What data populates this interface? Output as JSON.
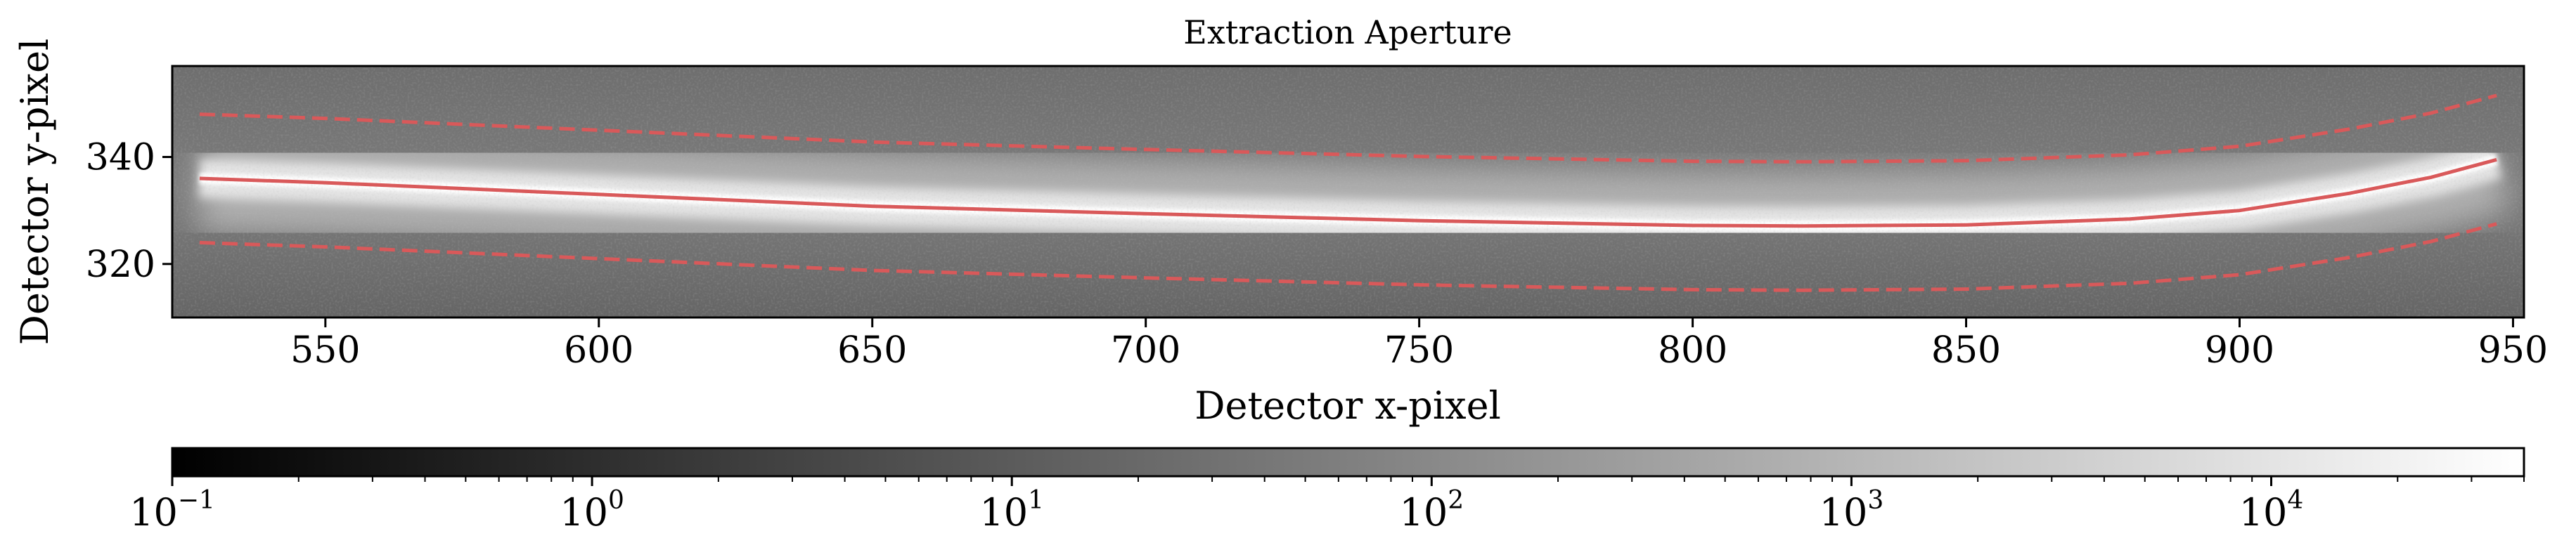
{
  "chart_data": {
    "type": "heatmap",
    "title": "Extraction Aperture",
    "xlabel": "Detector x-pixel",
    "ylabel": "Detector y-pixel",
    "xlim": [
      522,
      952
    ],
    "ylim": [
      310,
      357
    ],
    "x_ticks": [
      550,
      600,
      650,
      700,
      750,
      800,
      850,
      900,
      950
    ],
    "x_tick_labels": [
      "550",
      "600",
      "650",
      "700",
      "750",
      "800",
      "850",
      "900",
      "950"
    ],
    "y_ticks": [
      320,
      340
    ],
    "y_tick_labels": [
      "320",
      "340"
    ],
    "grid": false,
    "colormap": "gray",
    "trace_color": "#d9595a",
    "series": [
      {
        "style": "solid",
        "x": [
          527,
          550,
          600,
          650,
          700,
          750,
          800,
          820,
          850,
          880,
          900,
          920,
          935,
          947
        ],
        "y": [
          336,
          335.2,
          333,
          330.8,
          329.4,
          328.1,
          327.2,
          327.1,
          327.3,
          328.4,
          330,
          333.2,
          336.2,
          339.5
        ]
      },
      {
        "style": "dashed",
        "x": [
          527,
          550,
          600,
          650,
          700,
          750,
          800,
          820,
          850,
          880,
          900,
          920,
          935,
          947
        ],
        "y": [
          348,
          347.2,
          345,
          342.8,
          341.4,
          340.1,
          339.2,
          339.1,
          339.3,
          340.4,
          342,
          345.2,
          348.2,
          351.5
        ]
      },
      {
        "style": "dashed",
        "x": [
          527,
          550,
          600,
          650,
          700,
          750,
          800,
          820,
          850,
          880,
          900,
          920,
          935,
          947
        ],
        "y": [
          324,
          323.2,
          321,
          318.8,
          317.4,
          316.1,
          315.2,
          315.1,
          315.3,
          316.4,
          318,
          321.2,
          324.2,
          327.5
        ]
      }
    ],
    "colorbar": {
      "scale": "log",
      "range": [
        0.1,
        40000
      ],
      "ticks": [
        0.1,
        1,
        10,
        100,
        1000,
        10000
      ],
      "tick_bases": [
        "10",
        "10",
        "10",
        "10",
        "10",
        "10"
      ],
      "tick_exponents": [
        "−1",
        "0",
        "1",
        "2",
        "3",
        "4"
      ]
    }
  }
}
